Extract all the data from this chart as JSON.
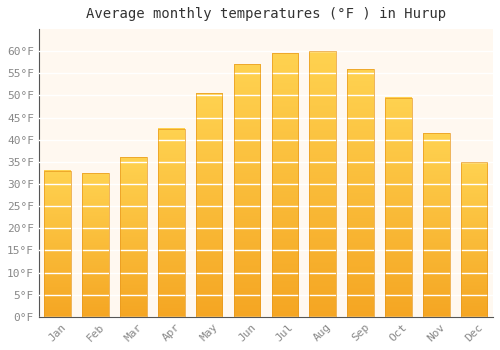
{
  "title": "Average monthly temperatures (°F ) in Hurup",
  "months": [
    "Jan",
    "Feb",
    "Mar",
    "Apr",
    "May",
    "Jun",
    "Jul",
    "Aug",
    "Sep",
    "Oct",
    "Nov",
    "Dec"
  ],
  "values": [
    33,
    32.5,
    36,
    42.5,
    50.5,
    57,
    59.5,
    60,
    56,
    49.5,
    41.5,
    35
  ],
  "bar_color_bottom": "#F5A623",
  "bar_color_top": "#FFD966",
  "bar_edge_color": "#E8981D",
  "figure_background": "#FFFFFF",
  "plot_background": "#FFF8F0",
  "grid_color": "#FFFFFF",
  "ylim": [
    0,
    65
  ],
  "yticks": [
    0,
    5,
    10,
    15,
    20,
    25,
    30,
    35,
    40,
    45,
    50,
    55,
    60
  ],
  "title_fontsize": 10,
  "tick_fontsize": 8,
  "font_family": "monospace"
}
